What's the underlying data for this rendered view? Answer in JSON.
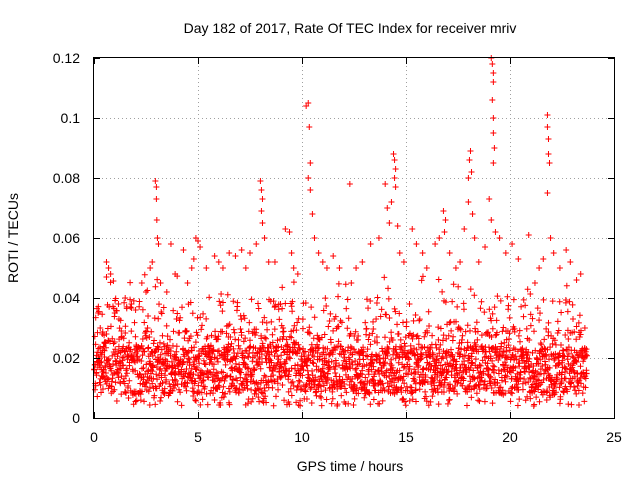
{
  "chart_data": {
    "type": "scatter",
    "title": "Day 182 of 2017, Rate Of TEC Index for receiver mriv",
    "xlabel": "GPS time / hours",
    "ylabel": "ROTI / TECUs",
    "xlim": [
      0,
      25
    ],
    "ylim": [
      0,
      0.12
    ],
    "xticks": [
      0,
      5,
      10,
      15,
      20,
      25
    ],
    "xtick_labels": [
      "0",
      "5",
      "10",
      "15",
      "20",
      "25"
    ],
    "yticks": [
      0,
      0.02,
      0.04,
      0.06,
      0.08,
      0.1,
      0.12
    ],
    "ytick_labels": [
      "0",
      "0.02",
      "0.04",
      "0.06",
      "0.08",
      "0.1",
      "0.12"
    ],
    "grid": true,
    "marker": "+",
    "color": "#ff0000",
    "data_x_range": [
      0,
      23.7
    ],
    "series": [
      {
        "name": "ROTI",
        "points": [
          [
            0.2,
            0.035
          ],
          [
            0.3,
            0.03
          ],
          [
            0.4,
            0.028
          ],
          [
            0.5,
            0.025
          ],
          [
            0.6,
            0.047
          ],
          [
            0.6,
            0.052
          ],
          [
            0.7,
            0.05
          ],
          [
            0.8,
            0.048
          ],
          [
            1.0,
            0.035
          ],
          [
            1.2,
            0.033
          ],
          [
            1.5,
            0.04
          ],
          [
            1.8,
            0.038
          ],
          [
            2.0,
            0.036
          ],
          [
            2.3,
            0.045
          ],
          [
            2.5,
            0.042
          ],
          [
            2.7,
            0.05
          ],
          [
            2.8,
            0.052
          ],
          [
            2.95,
            0.079
          ],
          [
            3.0,
            0.077
          ],
          [
            3.0,
            0.073
          ],
          [
            3.02,
            0.066
          ],
          [
            3.05,
            0.06
          ],
          [
            3.1,
            0.058
          ],
          [
            3.2,
            0.045
          ],
          [
            3.5,
            0.042
          ],
          [
            3.7,
            0.058
          ],
          [
            3.9,
            0.048
          ],
          [
            4.3,
            0.056
          ],
          [
            4.5,
            0.045
          ],
          [
            4.7,
            0.05
          ],
          [
            4.8,
            0.053
          ],
          [
            4.9,
            0.06
          ],
          [
            5.0,
            0.059
          ],
          [
            5.1,
            0.057
          ],
          [
            5.4,
            0.05
          ],
          [
            5.8,
            0.054
          ],
          [
            6.0,
            0.052
          ],
          [
            6.2,
            0.05
          ],
          [
            6.5,
            0.055
          ],
          [
            6.8,
            0.054
          ],
          [
            7.1,
            0.056
          ],
          [
            7.3,
            0.05
          ],
          [
            7.5,
            0.055
          ],
          [
            7.8,
            0.058
          ],
          [
            8.0,
            0.079
          ],
          [
            8.05,
            0.076
          ],
          [
            8.1,
            0.073
          ],
          [
            8.05,
            0.069
          ],
          [
            8.1,
            0.065
          ],
          [
            8.2,
            0.06
          ],
          [
            8.4,
            0.052
          ],
          [
            8.7,
            0.052
          ],
          [
            9.2,
            0.063
          ],
          [
            9.4,
            0.062
          ],
          [
            9.5,
            0.055
          ],
          [
            9.6,
            0.05
          ],
          [
            9.8,
            0.048
          ],
          [
            10.2,
            0.104
          ],
          [
            10.3,
            0.105
          ],
          [
            10.35,
            0.097
          ],
          [
            10.4,
            0.085
          ],
          [
            10.3,
            0.08
          ],
          [
            10.4,
            0.076
          ],
          [
            10.5,
            0.068
          ],
          [
            10.6,
            0.06
          ],
          [
            10.8,
            0.055
          ],
          [
            11.0,
            0.052
          ],
          [
            11.2,
            0.05
          ],
          [
            11.5,
            0.054
          ],
          [
            11.8,
            0.05
          ],
          [
            12.3,
            0.078
          ],
          [
            12.6,
            0.05
          ],
          [
            12.9,
            0.052
          ],
          [
            13.3,
            0.058
          ],
          [
            13.7,
            0.06
          ],
          [
            14.0,
            0.078
          ],
          [
            14.1,
            0.07
          ],
          [
            14.2,
            0.065
          ],
          [
            14.3,
            0.072
          ],
          [
            14.4,
            0.088
          ],
          [
            14.45,
            0.086
          ],
          [
            14.5,
            0.083
          ],
          [
            14.45,
            0.08
          ],
          [
            14.5,
            0.077
          ],
          [
            14.6,
            0.064
          ],
          [
            14.7,
            0.055
          ],
          [
            14.9,
            0.052
          ],
          [
            15.3,
            0.063
          ],
          [
            15.5,
            0.058
          ],
          [
            15.8,
            0.055
          ],
          [
            16.0,
            0.05
          ],
          [
            16.4,
            0.058
          ],
          [
            16.6,
            0.06
          ],
          [
            16.8,
            0.069
          ],
          [
            16.9,
            0.066
          ],
          [
            16.85,
            0.062
          ],
          [
            17.1,
            0.055
          ],
          [
            17.4,
            0.05
          ],
          [
            17.6,
            0.052
          ],
          [
            17.8,
            0.063
          ],
          [
            18.0,
            0.08
          ],
          [
            18.05,
            0.086
          ],
          [
            18.1,
            0.089
          ],
          [
            18.15,
            0.082
          ],
          [
            18.0,
            0.072
          ],
          [
            18.2,
            0.068
          ],
          [
            18.3,
            0.06
          ],
          [
            18.5,
            0.052
          ],
          [
            18.8,
            0.057
          ],
          [
            19.1,
            0.12
          ],
          [
            19.15,
            0.118
          ],
          [
            19.2,
            0.115
          ],
          [
            19.2,
            0.112
          ],
          [
            19.15,
            0.106
          ],
          [
            19.2,
            0.1
          ],
          [
            19.2,
            0.095
          ],
          [
            19.25,
            0.09
          ],
          [
            19.2,
            0.085
          ],
          [
            19.0,
            0.073
          ],
          [
            19.1,
            0.066
          ],
          [
            19.3,
            0.062
          ],
          [
            19.5,
            0.06
          ],
          [
            19.8,
            0.055
          ],
          [
            20.1,
            0.058
          ],
          [
            20.4,
            0.053
          ],
          [
            20.9,
            0.061
          ],
          [
            21.2,
            0.045
          ],
          [
            21.4,
            0.05
          ],
          [
            21.6,
            0.053
          ],
          [
            21.8,
            0.101
          ],
          [
            21.8,
            0.097
          ],
          [
            21.85,
            0.093
          ],
          [
            21.85,
            0.088
          ],
          [
            21.9,
            0.085
          ],
          [
            21.8,
            0.075
          ],
          [
            21.95,
            0.06
          ],
          [
            22.1,
            0.055
          ],
          [
            22.4,
            0.05
          ],
          [
            22.7,
            0.056
          ],
          [
            22.9,
            0.052
          ],
          [
            23.2,
            0.046
          ],
          [
            23.4,
            0.048
          ],
          [
            23.6,
            0.03
          ]
        ]
      }
    ]
  }
}
